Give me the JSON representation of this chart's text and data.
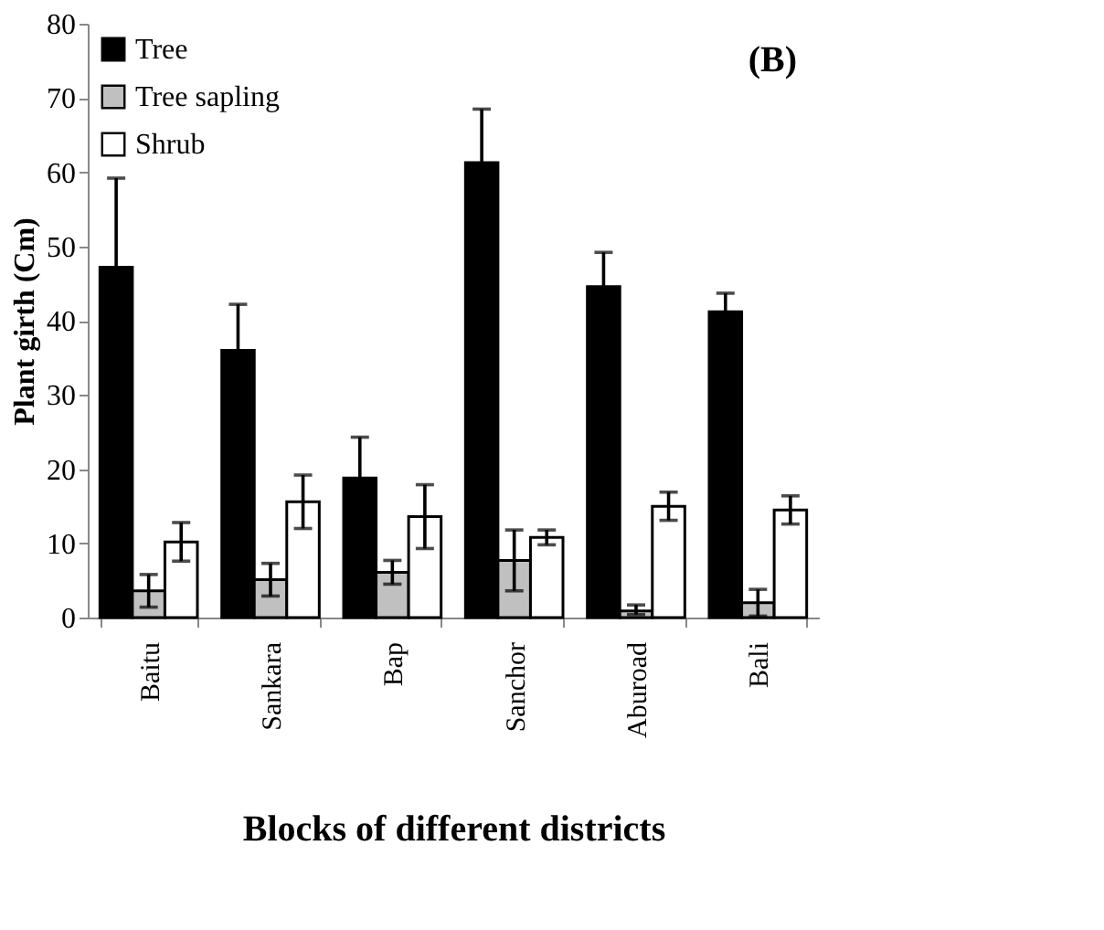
{
  "chart_data": {
    "type": "bar",
    "xlabel": "Blocks of different districts",
    "ylabel": "Plant girth (Cm)",
    "categories": [
      "Baitu",
      "Sankara",
      "Bap",
      "Sanchor",
      "Aburoad",
      "Bali"
    ],
    "series": [
      {
        "name": "Tree",
        "color": "#000000",
        "values": [
          47.2,
          36.0,
          18.8,
          61.3,
          44.6,
          41.2
        ],
        "errors": [
          12.0,
          6.2,
          5.5,
          7.2,
          4.6,
          2.5
        ]
      },
      {
        "name": "Tree sapling",
        "color": "#c0c0c0",
        "values": [
          3.6,
          5.1,
          6.1,
          7.7,
          0.9,
          2.0
        ],
        "errors": [
          2.2,
          2.2,
          1.6,
          4.1,
          [
            0.5,
            0.8
          ],
          1.8
        ]
      },
      {
        "name": "Shrub",
        "color": "#ffffff",
        "values": [
          10.2,
          15.6,
          13.6,
          10.8,
          15.0,
          14.5
        ],
        "errors": [
          2.6,
          3.6,
          4.3,
          1.0,
          1.9,
          1.9
        ]
      }
    ],
    "ylim": [
      0,
      80
    ],
    "yticks": [
      0,
      10,
      20,
      30,
      40,
      50,
      60,
      70,
      80
    ],
    "grid": false,
    "legend": "top left",
    "annotations": [
      "(B)"
    ]
  }
}
